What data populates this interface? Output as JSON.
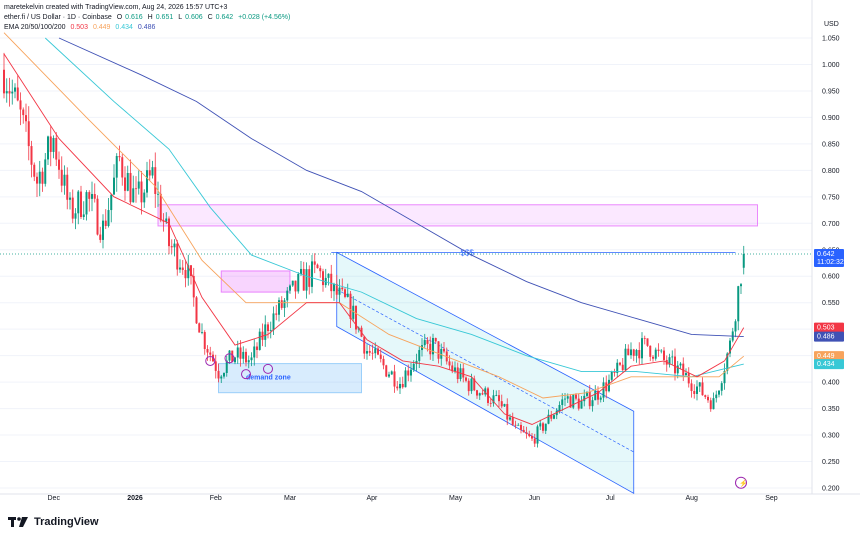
{
  "header": {
    "created": "maretekelvin created with TradingView.com, Aug 24, 2026 15:57 UTC+3",
    "symbol": "ether.fi / US Dollar · 1D · Coinbase",
    "o_label": "O",
    "o": "0.616",
    "h_label": "H",
    "h": "0.651",
    "l_label": "L",
    "l": "0.606",
    "c_label": "C",
    "c": "0.642",
    "change": "+0.028 (+4.56%)",
    "ema_label": "EMA 20/50/100/200",
    "ema20": "0.503",
    "ema50": "0.449",
    "ema100": "0.434",
    "ema200": "0.486"
  },
  "colors": {
    "up": "#089981",
    "down": "#f23645",
    "ema20": "#f23645",
    "ema50": "#f7a35c",
    "ema100": "#38c8d6",
    "ema200": "#3f51b5",
    "channel": "#2962ff",
    "demand": "#64b5f6",
    "supply": "#e040fb"
  },
  "annotations": {
    "liquidity": "$$$",
    "demand_zone": "demand zone"
  },
  "price_labels": {
    "close": "0.642",
    "countdown": "11:02:32",
    "ema20": "0.503",
    "ema200": "0.486",
    "ema50": "0.449",
    "ema100": "0.434"
  },
  "currency": "USD",
  "logo_text": "TradingView",
  "chart_data": {
    "type": "candlestick",
    "ylim": [
      0.2,
      1.05
    ],
    "y_ticks": [
      "1.050",
      "1.000",
      "0.950",
      "0.900",
      "0.850",
      "0.800",
      "0.750",
      "0.700",
      "0.650",
      "0.600",
      "0.550",
      "0.500",
      "0.450",
      "0.400",
      "0.350",
      "0.300",
      "0.250",
      "0.200"
    ],
    "x_ticks": [
      "Dec",
      "2026",
      "Feb",
      "Mar",
      "Apr",
      "May",
      "Jun",
      "Jul",
      "Aug",
      "Sep"
    ],
    "close_path": [
      [
        0,
        0.99
      ],
      [
        6,
        0.9
      ],
      [
        12,
        0.78
      ],
      [
        18,
        0.86
      ],
      [
        24,
        0.72
      ],
      [
        30,
        0.75
      ],
      [
        36,
        0.69
      ],
      [
        42,
        0.82
      ],
      [
        48,
        0.74
      ],
      [
        54,
        0.79
      ],
      [
        60,
        0.66
      ],
      [
        66,
        0.62
      ],
      [
        72,
        0.49
      ],
      [
        78,
        0.42
      ],
      [
        84,
        0.45
      ],
      [
        90,
        0.44
      ],
      [
        96,
        0.51
      ],
      [
        102,
        0.55
      ],
      [
        108,
        0.59
      ],
      [
        114,
        0.61
      ],
      [
        120,
        0.57
      ],
      [
        126,
        0.54
      ],
      [
        132,
        0.46
      ],
      [
        138,
        0.43
      ],
      [
        144,
        0.4
      ],
      [
        150,
        0.45
      ],
      [
        156,
        0.47
      ],
      [
        162,
        0.43
      ],
      [
        168,
        0.4
      ],
      [
        174,
        0.38
      ],
      [
        180,
        0.36
      ],
      [
        186,
        0.31
      ],
      [
        192,
        0.29
      ],
      [
        198,
        0.33
      ],
      [
        204,
        0.37
      ],
      [
        210,
        0.36
      ],
      [
        216,
        0.38
      ],
      [
        222,
        0.41
      ],
      [
        228,
        0.46
      ],
      [
        234,
        0.47
      ],
      [
        240,
        0.44
      ],
      [
        246,
        0.42
      ],
      [
        252,
        0.39
      ],
      [
        258,
        0.36
      ],
      [
        264,
        0.47
      ],
      [
        269,
        0.642
      ]
    ],
    "ema20_path": [
      [
        0,
        1.02
      ],
      [
        20,
        0.86
      ],
      [
        40,
        0.75
      ],
      [
        60,
        0.7
      ],
      [
        72,
        0.56
      ],
      [
        84,
        0.47
      ],
      [
        96,
        0.49
      ],
      [
        110,
        0.55
      ],
      [
        122,
        0.55
      ],
      [
        132,
        0.48
      ],
      [
        145,
        0.44
      ],
      [
        158,
        0.43
      ],
      [
        170,
        0.41
      ],
      [
        182,
        0.34
      ],
      [
        192,
        0.32
      ],
      [
        204,
        0.35
      ],
      [
        216,
        0.38
      ],
      [
        228,
        0.43
      ],
      [
        240,
        0.44
      ],
      [
        252,
        0.41
      ],
      [
        262,
        0.44
      ],
      [
        269,
        0.503
      ]
    ],
    "ema50_path": [
      [
        0,
        1.06
      ],
      [
        30,
        0.9
      ],
      [
        55,
        0.77
      ],
      [
        72,
        0.63
      ],
      [
        88,
        0.55
      ],
      [
        105,
        0.55
      ],
      [
        122,
        0.55
      ],
      [
        140,
        0.49
      ],
      [
        160,
        0.45
      ],
      [
        180,
        0.41
      ],
      [
        196,
        0.37
      ],
      [
        212,
        0.38
      ],
      [
        228,
        0.41
      ],
      [
        244,
        0.41
      ],
      [
        260,
        0.41
      ],
      [
        269,
        0.449
      ]
    ],
    "ema100_path": [
      [
        15,
        1.05
      ],
      [
        40,
        0.93
      ],
      [
        60,
        0.84
      ],
      [
        75,
        0.73
      ],
      [
        90,
        0.64
      ],
      [
        110,
        0.6
      ],
      [
        130,
        0.57
      ],
      [
        150,
        0.52
      ],
      [
        170,
        0.49
      ],
      [
        190,
        0.45
      ],
      [
        210,
        0.42
      ],
      [
        230,
        0.42
      ],
      [
        250,
        0.41
      ],
      [
        269,
        0.434
      ]
    ],
    "ema200_path": [
      [
        20,
        1.05
      ],
      [
        50,
        0.98
      ],
      [
        70,
        0.93
      ],
      [
        90,
        0.86
      ],
      [
        110,
        0.8
      ],
      [
        130,
        0.76
      ],
      [
        150,
        0.7
      ],
      [
        170,
        0.64
      ],
      [
        190,
        0.59
      ],
      [
        210,
        0.55
      ],
      [
        230,
        0.52
      ],
      [
        250,
        0.49
      ],
      [
        269,
        0.486
      ]
    ],
    "supply_zone": [
      [
        56,
        274
      ],
      [
        0.695,
        0.735
      ]
    ],
    "pink_box": [
      [
        79,
        104
      ],
      [
        0.57,
        0.61
      ]
    ],
    "demand_box": [
      [
        78,
        130
      ],
      [
        0.38,
        0.435
      ]
    ],
    "liquidity_line": 0.645
  }
}
